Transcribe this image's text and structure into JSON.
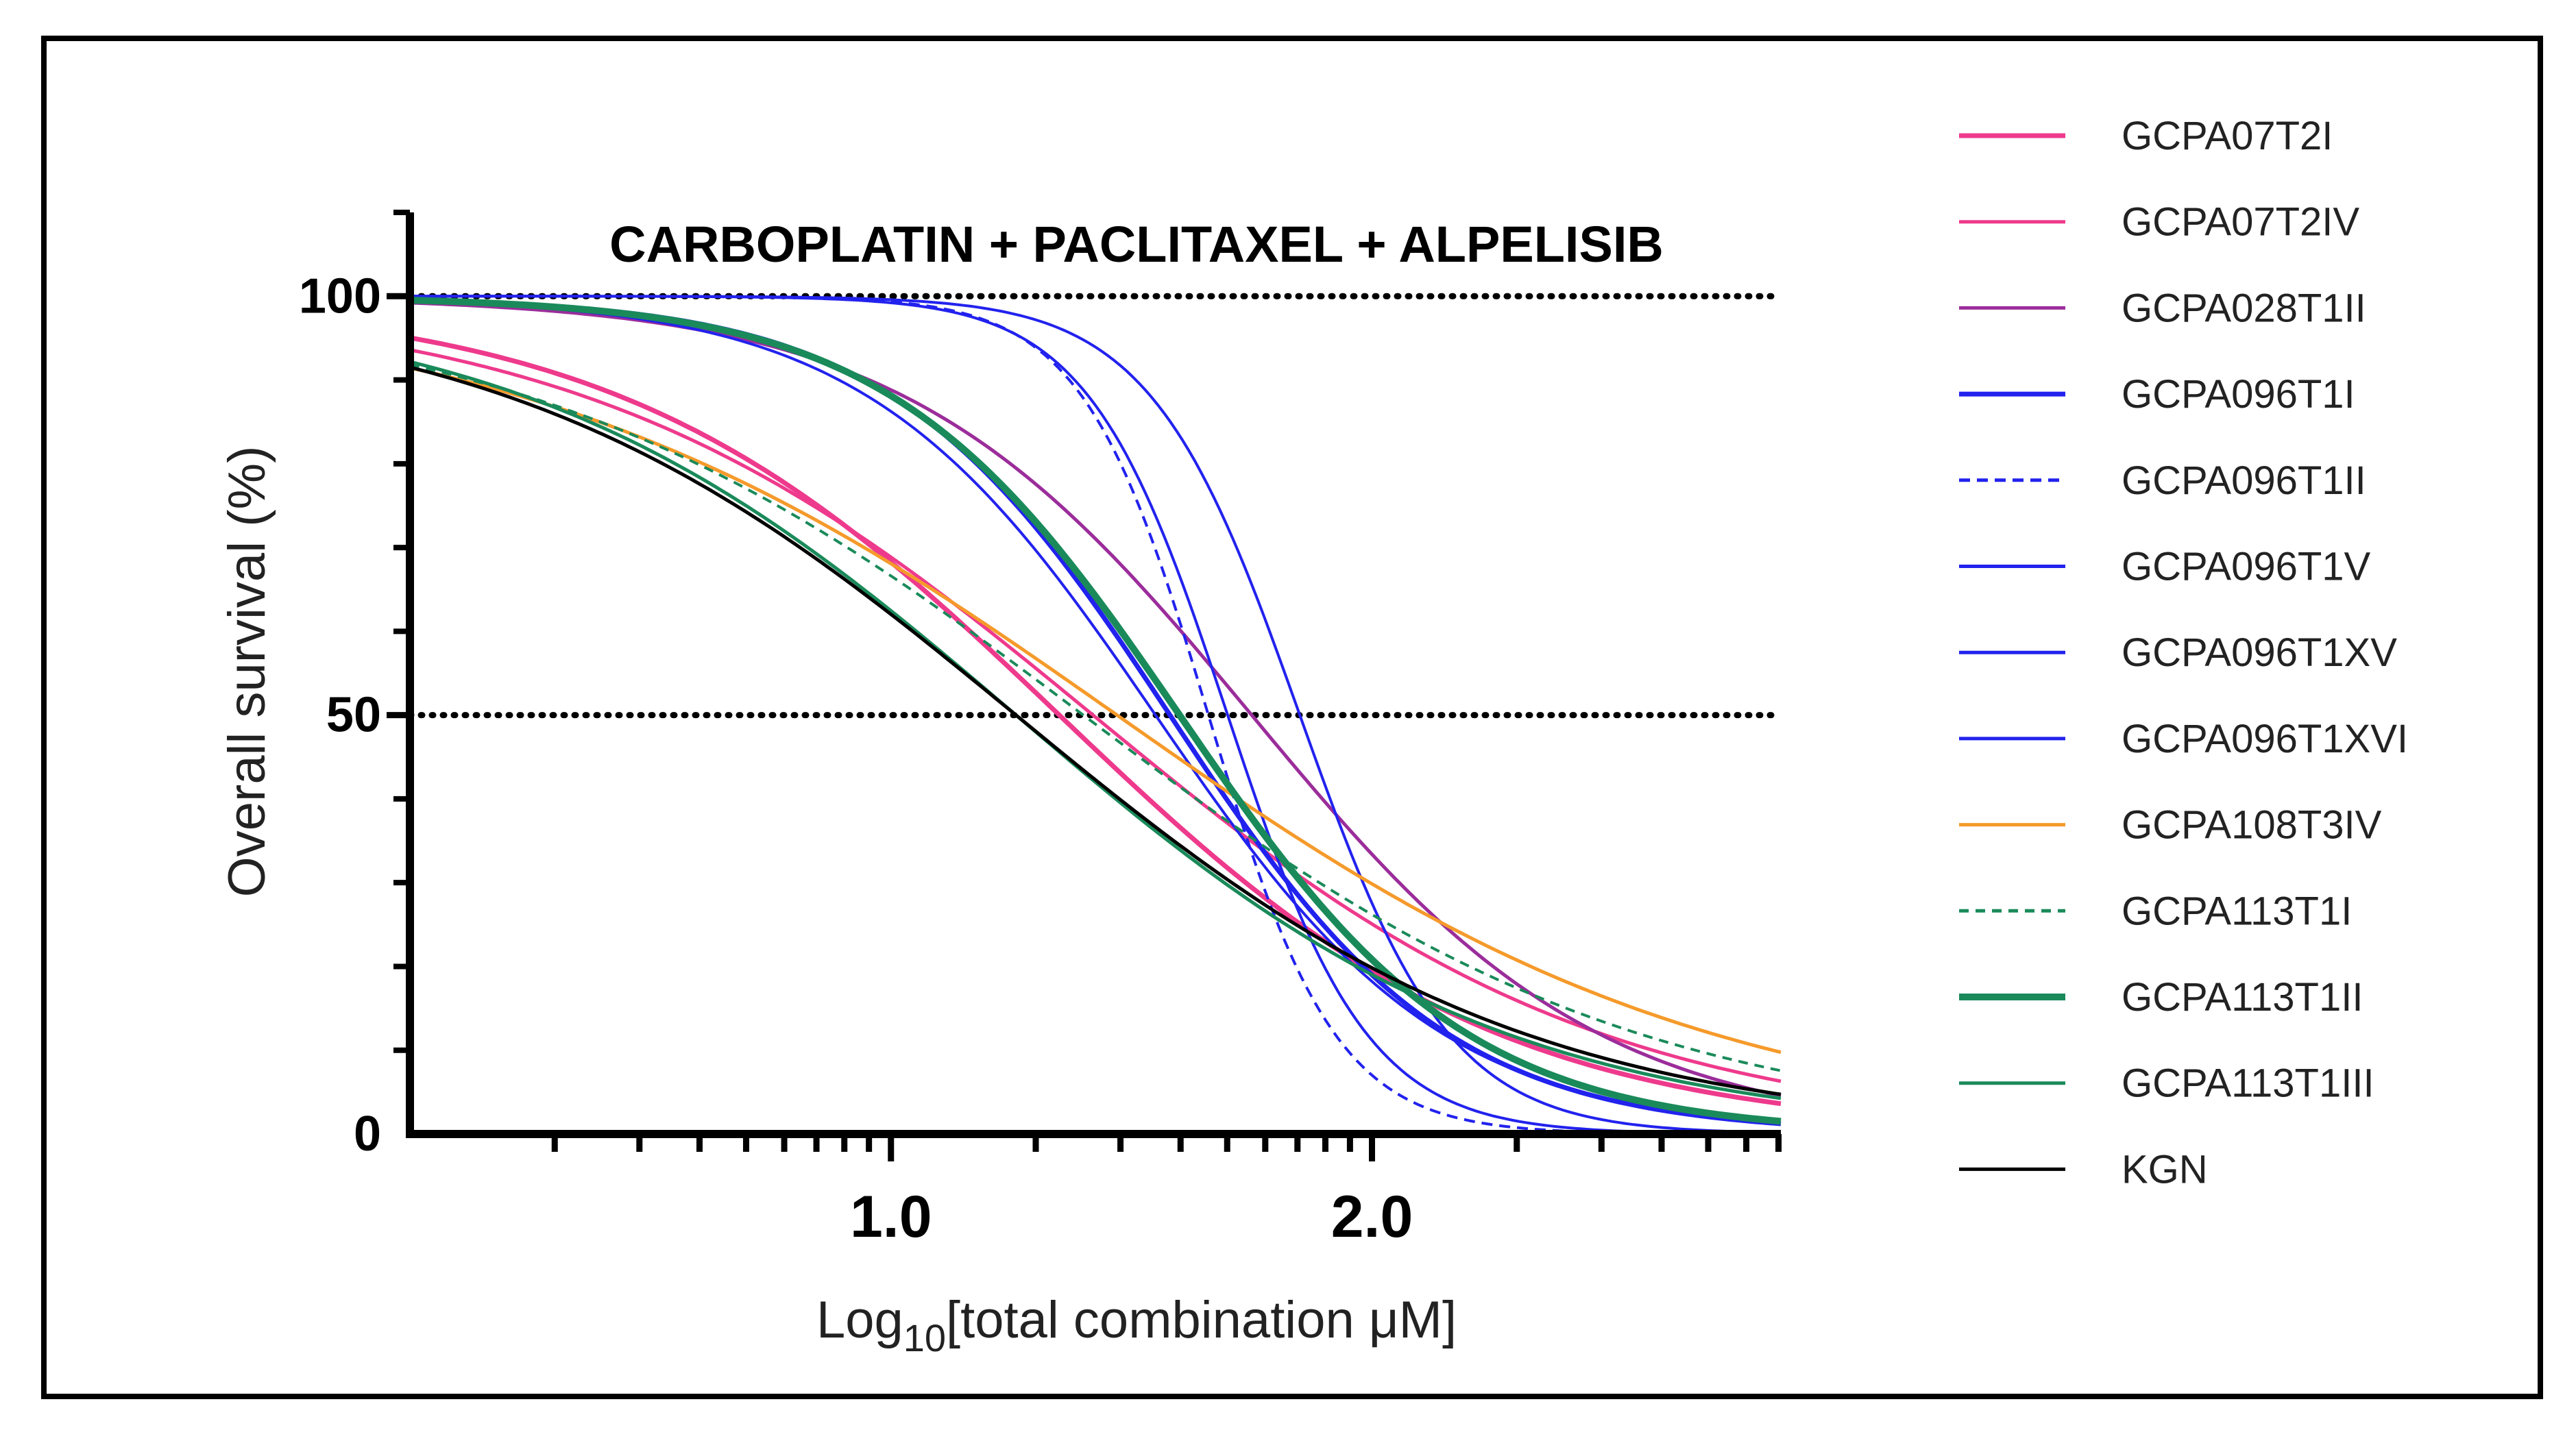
{
  "chart_data": {
    "type": "line",
    "title": "CARBOPLATIN + PACLITAXEL + ALPELISIB",
    "xlabel_prefix": "Log",
    "xlabel_sub": "10",
    "xlabel_suffix": "[total combination μM]",
    "ylabel": "Overall survival (%)",
    "xlim": [
      0.0,
      2.85
    ],
    "ylim": [
      0,
      110
    ],
    "x_ticks": [
      {
        "value": 1.0,
        "label": "1.0"
      },
      {
        "value": 2.0,
        "label": "2.0"
      }
    ],
    "x_minor_ticks_log": true,
    "y_ticks": [
      {
        "value": 0,
        "label": "0"
      },
      {
        "value": 50,
        "label": "50"
      },
      {
        "value": 100,
        "label": "100"
      }
    ],
    "reference_lines": [
      100,
      50
    ],
    "legend_position": "right",
    "series": [
      {
        "name": "GCPA07T2I",
        "color": "#ee3a8c",
        "width": 7,
        "dash": "",
        "top": 100,
        "bottom": 0,
        "logIC50": 1.35,
        "hill": 0.95
      },
      {
        "name": "GCPA07T2IV",
        "color": "#ee3a8c",
        "width": 5,
        "dash": "",
        "top": 100,
        "bottom": 0,
        "logIC50": 1.42,
        "hill": 0.82
      },
      {
        "name": "GCPA028T1II",
        "color": "#9b2d9b",
        "width": 5,
        "dash": "",
        "top": 100,
        "bottom": 0,
        "logIC50": 1.75,
        "hill": 1.2
      },
      {
        "name": "GCPA096T1I",
        "color": "#2222ee",
        "width": 7,
        "dash": "",
        "top": 100,
        "bottom": 0,
        "logIC50": 1.58,
        "hill": 1.5
      },
      {
        "name": "GCPA096T1II",
        "color": "#2222ee",
        "width": 4,
        "dash": "16,10",
        "top": 100,
        "bottom": 0,
        "logIC50": 1.66,
        "hill": 3.3
      },
      {
        "name": "GCPA096T1V",
        "color": "#2222ee",
        "width": 4,
        "dash": "",
        "top": 100,
        "bottom": 0,
        "logIC50": 1.85,
        "hill": 2.8
      },
      {
        "name": "GCPA096T1XV",
        "color": "#2222ee",
        "width": 4,
        "dash": "",
        "top": 100,
        "bottom": 0,
        "logIC50": 1.7,
        "hill": 3.0
      },
      {
        "name": "GCPA096T1XVI",
        "color": "#2222ee",
        "width": 4,
        "dash": "",
        "top": 100,
        "bottom": 0,
        "logIC50": 1.55,
        "hill": 1.45
      },
      {
        "name": "GCPA108T3IV",
        "color": "#f59a2b",
        "width": 5,
        "dash": "",
        "top": 100,
        "bottom": 0,
        "logIC50": 1.47,
        "hill": 0.7
      },
      {
        "name": "GCPA113T1I",
        "color": "#1a8a5a",
        "width": 4,
        "dash": "14,10",
        "top": 100,
        "bottom": 0,
        "logIC50": 1.4,
        "hill": 0.75
      },
      {
        "name": "GCPA113T1II",
        "color": "#1a8a5a",
        "width": 10,
        "dash": "",
        "top": 100,
        "bottom": 0,
        "logIC50": 1.6,
        "hill": 1.45
      },
      {
        "name": "GCPA113T1III",
        "color": "#1a8a5a",
        "width": 5,
        "dash": "",
        "top": 100,
        "bottom": 0,
        "logIC50": 1.26,
        "hill": 0.85
      },
      {
        "name": "KGN",
        "color": "#000000",
        "width": 5,
        "dash": "",
        "top": 100,
        "bottom": 0,
        "logIC50": 1.26,
        "hill": 0.82
      }
    ]
  }
}
